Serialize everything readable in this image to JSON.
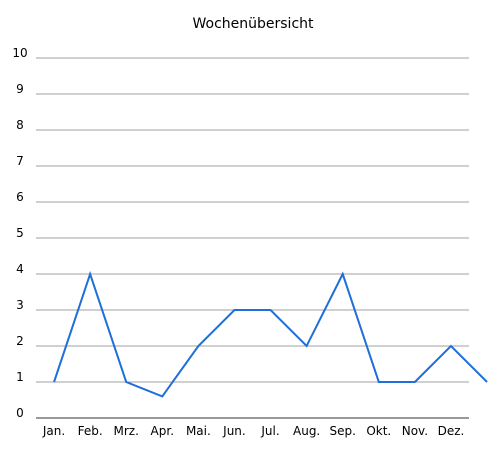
{
  "chart_data": {
    "type": "line",
    "title": "Wochenübersicht",
    "xlabel": "",
    "ylabel": "",
    "categories": [
      "Jan.",
      "Feb.",
      "Mrz.",
      "Apr.",
      "Mai.",
      "Jun.",
      "Jul.",
      "Aug.",
      "Sep.",
      "Okt.",
      "Nov.",
      "Dez."
    ],
    "y_ticks": [
      "0",
      "1",
      "2",
      "3",
      "4",
      "5",
      "6",
      "7",
      "8",
      "9",
      "10"
    ],
    "ylim": [
      0,
      10
    ],
    "series": [
      {
        "x": [
          0.5,
          1.5,
          2.5,
          3.5,
          4.5,
          5.5,
          6.5,
          7.5,
          8.5,
          9.5,
          10.5,
          11.5,
          12.5
        ],
        "values": [
          1,
          4,
          1,
          0.6,
          2,
          3,
          3,
          2,
          4,
          1,
          1,
          2,
          1
        ]
      }
    ],
    "grid": true,
    "legend": "none",
    "colors": {
      "line": "#1e6fd9",
      "grid": "#a0a0a0",
      "axis": "#333333",
      "text": "#000000"
    }
  }
}
